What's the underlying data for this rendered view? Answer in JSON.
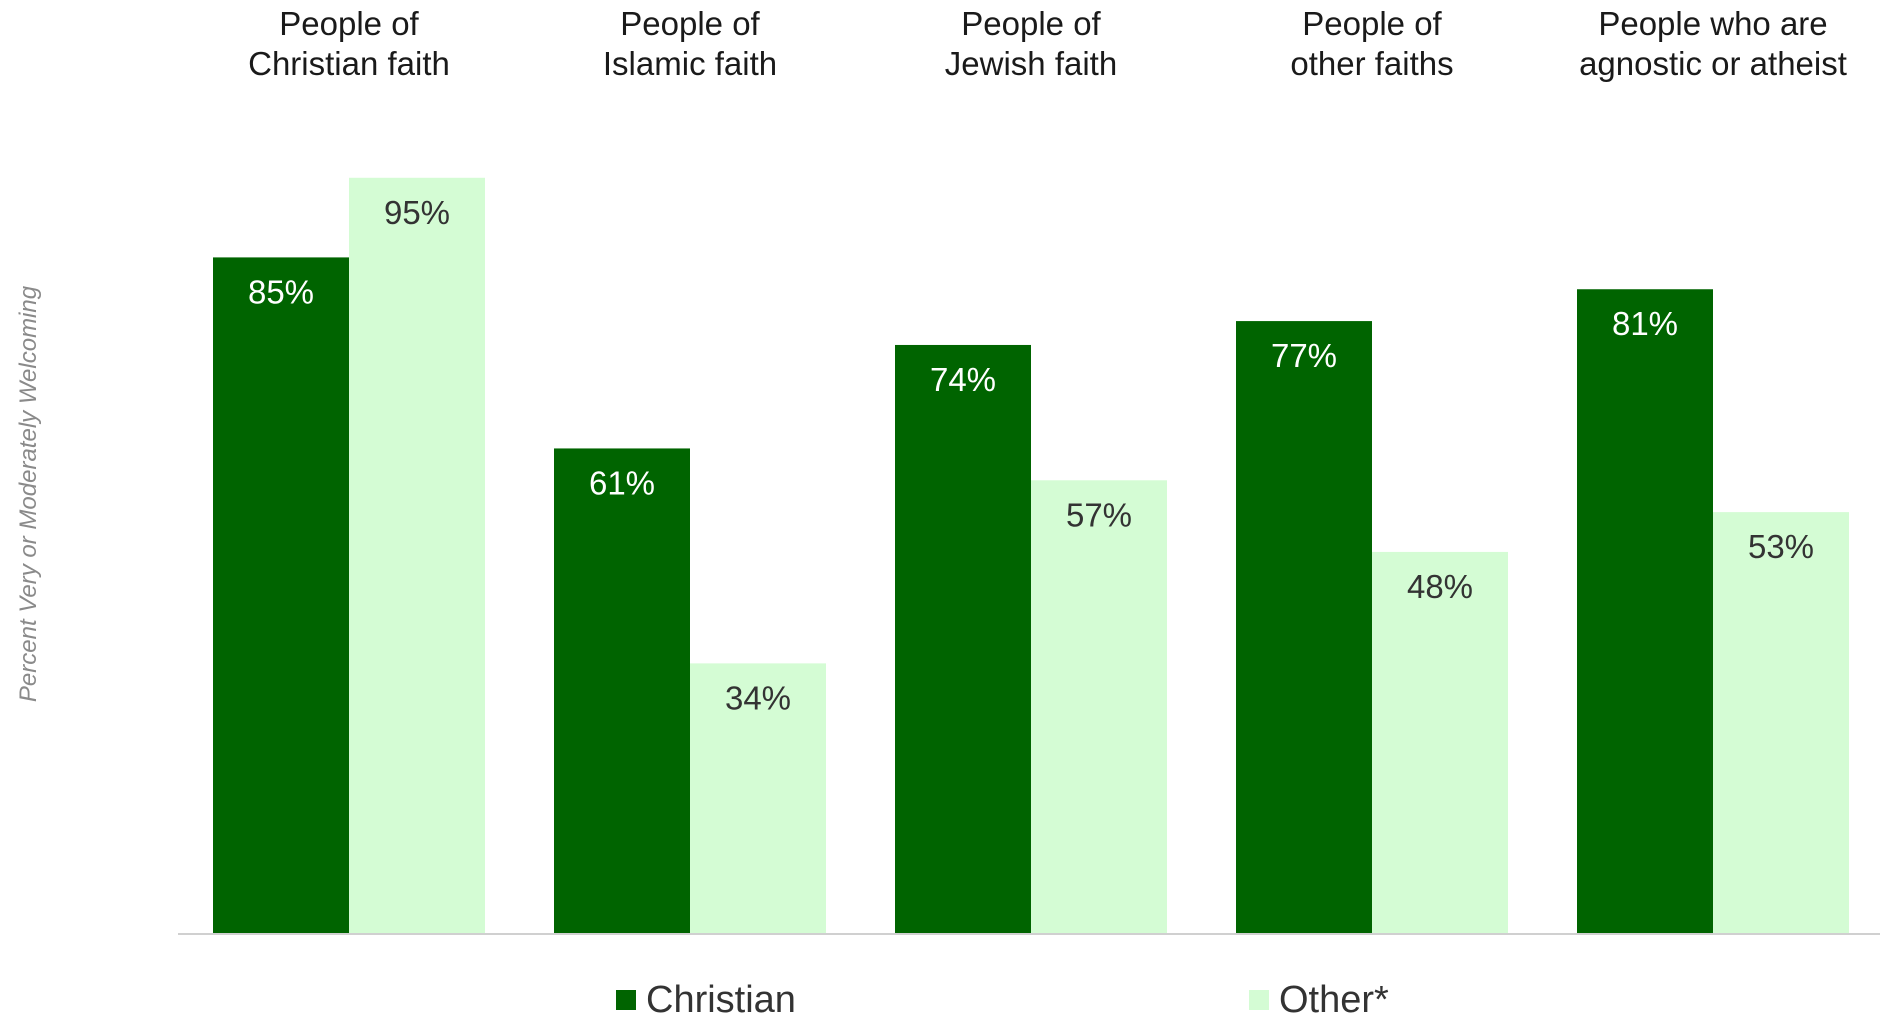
{
  "chart_data": {
    "type": "bar",
    "categories": [
      [
        "People of",
        "Christian faith"
      ],
      [
        "People of",
        "Islamic faith"
      ],
      [
        "People of",
        "Jewish faith"
      ],
      [
        "People of",
        "other faiths"
      ],
      [
        "People who are",
        "agnostic or atheist"
      ]
    ],
    "series": [
      {
        "name": "Christian",
        "values": [
          85,
          61,
          74,
          77,
          81
        ],
        "labels": [
          "85%",
          "61%",
          "74%",
          "77%",
          "81%"
        ],
        "color": "#006400",
        "label_color": "#ffffff"
      },
      {
        "name": "Other*",
        "values": [
          95,
          34,
          57,
          48,
          53
        ],
        "labels": [
          "95%",
          "34%",
          "57%",
          "48%",
          "53%"
        ],
        "color": "#d4fcd4",
        "label_color": "#333333"
      }
    ],
    "ylabel": "Percent Very or Moderately Welcoming",
    "ylim": [
      0,
      100
    ],
    "grid": false,
    "legend_position": "bottom"
  }
}
